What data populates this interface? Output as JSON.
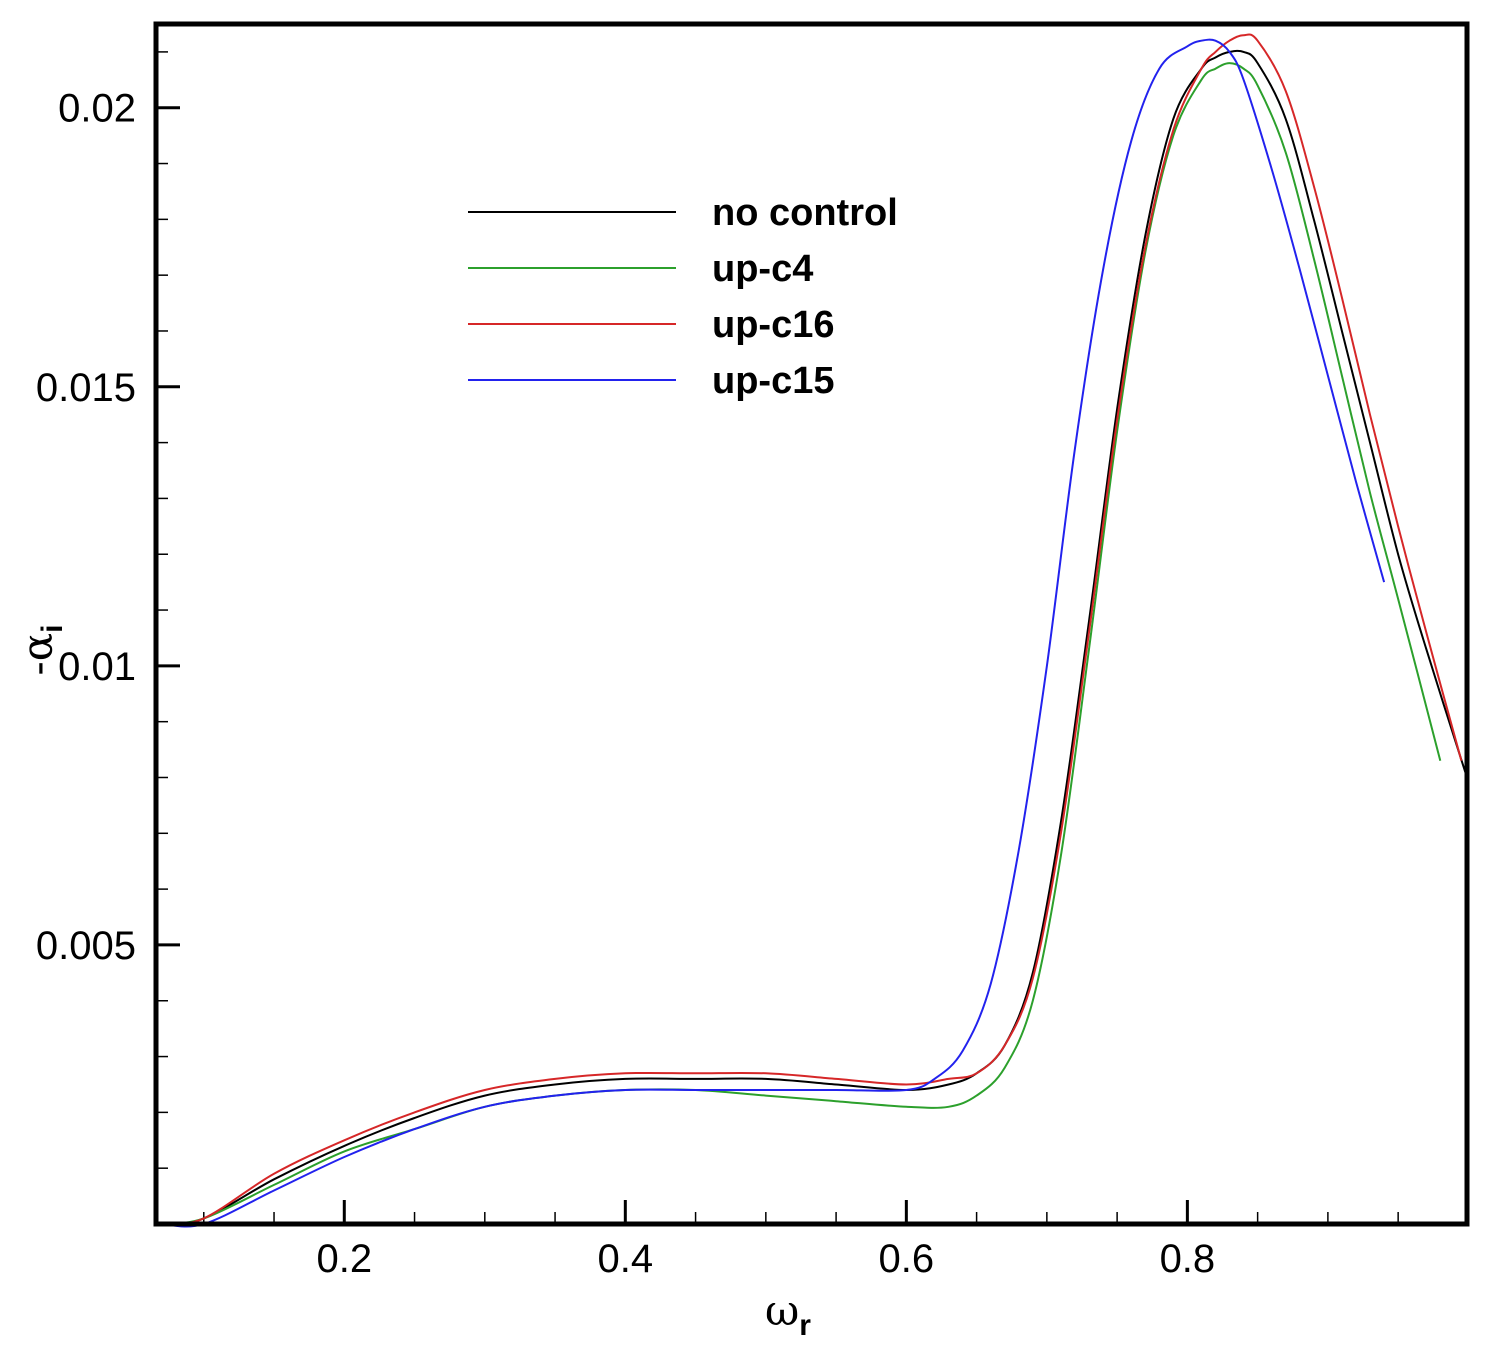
{
  "chart_data": {
    "type": "line",
    "xlabel": {
      "symbol": "ω",
      "subscript": "r"
    },
    "ylabel": {
      "prefix": "-",
      "symbol": "α",
      "subscript": "i"
    },
    "xlim": [
      0.066,
      0.999
    ],
    "ylim": [
      0.0,
      0.0215
    ],
    "x_ticks": [
      0.2,
      0.4,
      0.6,
      0.8
    ],
    "x_tick_labels": [
      "0.2",
      "0.4",
      "0.6",
      "0.8"
    ],
    "x_minor_step": 0.05,
    "y_ticks": [
      0.005,
      0.01,
      0.015,
      0.02
    ],
    "y_tick_labels": [
      "0.005",
      "0.01",
      "0.015",
      "0.02"
    ],
    "y_minor_step": 0.001,
    "grid": false,
    "legend_position": "upper-left-center",
    "series": [
      {
        "name": "no control",
        "color": "#000000",
        "x": [
          0.07,
          0.1,
          0.15,
          0.2,
          0.25,
          0.3,
          0.35,
          0.4,
          0.45,
          0.5,
          0.55,
          0.6,
          0.63,
          0.65,
          0.67,
          0.69,
          0.71,
          0.73,
          0.75,
          0.77,
          0.79,
          0.81,
          0.82,
          0.83,
          0.84,
          0.85,
          0.87,
          0.89,
          0.91,
          0.93,
          0.95,
          0.97,
          0.999
        ],
        "y": [
          0.0,
          0.0001,
          0.0008,
          0.0014,
          0.0019,
          0.0023,
          0.0025,
          0.0026,
          0.0026,
          0.0026,
          0.0025,
          0.0024,
          0.0025,
          0.0027,
          0.0032,
          0.0045,
          0.0072,
          0.0108,
          0.0146,
          0.0177,
          0.0198,
          0.0207,
          0.0209,
          0.021,
          0.021,
          0.0208,
          0.0198,
          0.018,
          0.016,
          0.014,
          0.012,
          0.0103,
          0.008
        ]
      },
      {
        "name": "up-c4",
        "color": "#2ca02c",
        "x": [
          0.07,
          0.1,
          0.15,
          0.2,
          0.25,
          0.3,
          0.35,
          0.4,
          0.45,
          0.5,
          0.55,
          0.6,
          0.63,
          0.65,
          0.67,
          0.69,
          0.71,
          0.73,
          0.75,
          0.77,
          0.79,
          0.81,
          0.82,
          0.83,
          0.84,
          0.85,
          0.87,
          0.89,
          0.91,
          0.93,
          0.95,
          0.98
        ],
        "y": [
          0.0,
          0.0001,
          0.0007,
          0.0013,
          0.0017,
          0.0021,
          0.0023,
          0.0024,
          0.0024,
          0.0023,
          0.0022,
          0.0021,
          0.0021,
          0.0023,
          0.0028,
          0.004,
          0.0066,
          0.0103,
          0.0142,
          0.0174,
          0.0195,
          0.0205,
          0.0207,
          0.0208,
          0.0207,
          0.0204,
          0.0192,
          0.0173,
          0.0152,
          0.0131,
          0.0112,
          0.0083
        ]
      },
      {
        "name": "up-c16",
        "color": "#d62728",
        "x": [
          0.07,
          0.1,
          0.15,
          0.2,
          0.25,
          0.3,
          0.35,
          0.4,
          0.45,
          0.5,
          0.55,
          0.6,
          0.63,
          0.65,
          0.67,
          0.69,
          0.71,
          0.73,
          0.75,
          0.77,
          0.79,
          0.81,
          0.82,
          0.83,
          0.84,
          0.85,
          0.87,
          0.89,
          0.91,
          0.93,
          0.95,
          0.97,
          0.995
        ],
        "y": [
          0.0,
          0.0001,
          0.0009,
          0.0015,
          0.002,
          0.0024,
          0.0026,
          0.0027,
          0.0027,
          0.0027,
          0.0026,
          0.0025,
          0.0026,
          0.0027,
          0.0032,
          0.0044,
          0.007,
          0.0106,
          0.0144,
          0.0175,
          0.0196,
          0.0207,
          0.021,
          0.0212,
          0.0213,
          0.0212,
          0.0203,
          0.0186,
          0.0166,
          0.0145,
          0.0125,
          0.0106,
          0.0083
        ]
      },
      {
        "name": "up-c15",
        "color": "#2222ee",
        "x": [
          0.07,
          0.1,
          0.15,
          0.2,
          0.25,
          0.3,
          0.35,
          0.4,
          0.45,
          0.5,
          0.55,
          0.6,
          0.62,
          0.64,
          0.66,
          0.68,
          0.7,
          0.72,
          0.74,
          0.76,
          0.78,
          0.8,
          0.81,
          0.82,
          0.83,
          0.84,
          0.86,
          0.88,
          0.9,
          0.92,
          0.94
        ],
        "y": [
          0.0,
          0.0,
          0.0006,
          0.0012,
          0.0017,
          0.0021,
          0.0023,
          0.0024,
          0.0024,
          0.0024,
          0.0024,
          0.0024,
          0.0026,
          0.0031,
          0.0043,
          0.0067,
          0.01,
          0.0139,
          0.0171,
          0.0194,
          0.0207,
          0.0211,
          0.0212,
          0.0212,
          0.021,
          0.0205,
          0.0189,
          0.0171,
          0.0152,
          0.0133,
          0.0115
        ]
      }
    ]
  }
}
